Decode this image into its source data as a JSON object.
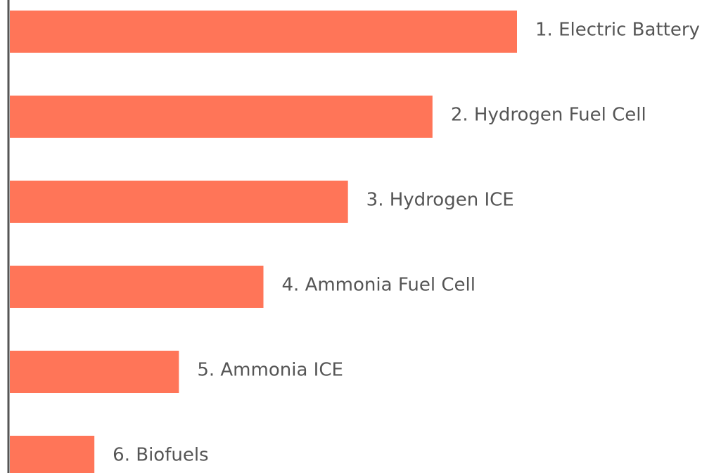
{
  "chart_data": {
    "type": "bar",
    "orientation": "horizontal",
    "categories": [
      "1. Electric Battery",
      "2. Hydrogen Fuel Cell",
      "3. Hydrogen ICE",
      "4. Ammonia Fuel Cell",
      "5. Ammonia ICE",
      "6. Biofuels"
    ],
    "values": [
      6,
      5,
      4,
      3,
      2,
      1
    ],
    "color": "#ff7558",
    "xlim": [
      0,
      6
    ]
  }
}
